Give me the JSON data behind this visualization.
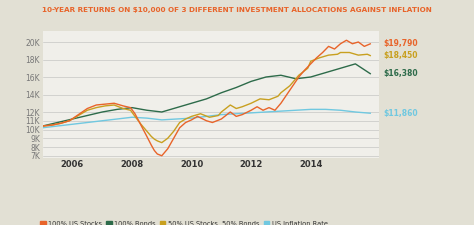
{
  "title": "10-YEAR RETURNS ON $10,000 OF 3 DIFFERENT INVESTMENT ALLOCATIONS AGAINST INFLATION",
  "title_color": "#E8642A",
  "background_color": "#E2E0D4",
  "plot_bg_color": "#F0EFEA",
  "us_stocks_color": "#E8642A",
  "bonds_color": "#2D6B4A",
  "mixed_color": "#C8A020",
  "inflation_color": "#70C8E0",
  "us_stocks_x": [
    2005.0,
    2005.3,
    2005.6,
    2005.9,
    2006.2,
    2006.5,
    2006.8,
    2007.1,
    2007.4,
    2007.7,
    2007.95,
    2008.1,
    2008.3,
    2008.5,
    2008.65,
    2008.75,
    2008.85,
    2009.0,
    2009.2,
    2009.4,
    2009.6,
    2009.8,
    2010.0,
    2010.2,
    2010.5,
    2010.7,
    2011.0,
    2011.3,
    2011.5,
    2011.7,
    2012.0,
    2012.2,
    2012.4,
    2012.6,
    2012.8,
    2013.0,
    2013.3,
    2013.6,
    2013.8,
    2014.0,
    2014.2,
    2014.4,
    2014.6,
    2014.8,
    2015.0,
    2015.2,
    2015.4,
    2015.6,
    2015.8,
    2016.0
  ],
  "us_stocks_y": [
    10400,
    10500,
    10700,
    11000,
    11700,
    12400,
    12800,
    12900,
    13000,
    12700,
    12500,
    11800,
    10500,
    9200,
    8200,
    7600,
    7200,
    7000,
    7800,
    9000,
    10200,
    10800,
    11100,
    11500,
    11000,
    10800,
    11200,
    12000,
    11500,
    11700,
    12200,
    12600,
    12200,
    12500,
    12200,
    13000,
    14500,
    16000,
    16800,
    17500,
    18200,
    18800,
    19500,
    19200,
    19800,
    20200,
    19800,
    20000,
    19500,
    19790
  ],
  "bonds_x": [
    2005.0,
    2005.5,
    2006.0,
    2006.5,
    2007.0,
    2007.5,
    2008.0,
    2008.5,
    2009.0,
    2009.5,
    2010.0,
    2010.5,
    2011.0,
    2011.5,
    2012.0,
    2012.5,
    2013.0,
    2013.5,
    2014.0,
    2014.5,
    2015.0,
    2015.5,
    2016.0
  ],
  "bonds_y": [
    10400,
    10800,
    11200,
    11600,
    12000,
    12300,
    12500,
    12200,
    12000,
    12500,
    13000,
    13500,
    14200,
    14800,
    15500,
    16000,
    16200,
    15800,
    16000,
    16500,
    17000,
    17500,
    16380
  ],
  "mixed_x": [
    2005.0,
    2005.3,
    2005.6,
    2005.9,
    2006.2,
    2006.5,
    2006.8,
    2007.1,
    2007.4,
    2007.7,
    2007.95,
    2008.1,
    2008.3,
    2008.5,
    2008.65,
    2008.75,
    2008.85,
    2009.0,
    2009.2,
    2009.4,
    2009.6,
    2009.8,
    2010.0,
    2010.3,
    2010.6,
    2010.9,
    2011.0,
    2011.3,
    2011.5,
    2011.7,
    2012.0,
    2012.3,
    2012.6,
    2012.9,
    2013.0,
    2013.3,
    2013.6,
    2013.9,
    2014.0,
    2014.3,
    2014.6,
    2014.9,
    2015.0,
    2015.3,
    2015.6,
    2015.9,
    2016.0
  ],
  "mixed_y": [
    10400,
    10500,
    10700,
    11000,
    11600,
    12200,
    12500,
    12700,
    12800,
    12400,
    12200,
    11500,
    10600,
    9800,
    9200,
    8900,
    8700,
    8500,
    9000,
    9800,
    10800,
    11200,
    11500,
    11800,
    11400,
    11600,
    12000,
    12800,
    12400,
    12600,
    13000,
    13500,
    13400,
    13800,
    14200,
    15000,
    16200,
    17000,
    17800,
    18200,
    18500,
    18600,
    18800,
    18800,
    18500,
    18600,
    18450
  ],
  "inflation_x": [
    2005.0,
    2005.5,
    2006.0,
    2006.5,
    2007.0,
    2007.5,
    2008.0,
    2008.5,
    2009.0,
    2009.5,
    2010.0,
    2010.5,
    2011.0,
    2011.5,
    2012.0,
    2012.5,
    2013.0,
    2013.5,
    2014.0,
    2014.5,
    2015.0,
    2015.5,
    2016.0
  ],
  "inflation_y": [
    10200,
    10400,
    10600,
    10800,
    11000,
    11200,
    11400,
    11300,
    11100,
    11200,
    11300,
    11500,
    11700,
    11800,
    11900,
    12000,
    12100,
    12200,
    12300,
    12300,
    12200,
    12000,
    11860
  ],
  "ytick_vals": [
    7000,
    8000,
    9000,
    10000,
    11000,
    12000,
    14000,
    16000,
    18000,
    20000
  ],
  "ytick_labels": [
    "7K",
    "8K",
    "9K",
    "10K",
    "11K",
    "12K",
    "14K",
    "16K",
    "18K",
    "20K"
  ],
  "xtick_vals": [
    2006,
    2008,
    2010,
    2012,
    2014
  ],
  "xtick_labels": [
    "2006",
    "2008",
    "2010",
    "2012",
    "2014"
  ],
  "xlim": [
    2005.0,
    2016.3
  ],
  "ylim": [
    6800,
    21200
  ],
  "end_labels": [
    {
      "val": 19790,
      "label": "$19,790",
      "color": "#E8642A"
    },
    {
      "val": 18450,
      "label": "$18,450",
      "color": "#C8A020"
    },
    {
      "val": 16380,
      "label": "$16,380",
      "color": "#2D6B4A"
    },
    {
      "val": 11860,
      "label": "$11,860",
      "color": "#70C8E0"
    }
  ],
  "legend_labels": [
    "100% US Stocks",
    "100% Bonds",
    "50% US Stocks, 50% Bonds",
    "US Inflation Rate"
  ],
  "legend_colors": [
    "#E8642A",
    "#2D6B4A",
    "#C8A020",
    "#70C8E0"
  ]
}
